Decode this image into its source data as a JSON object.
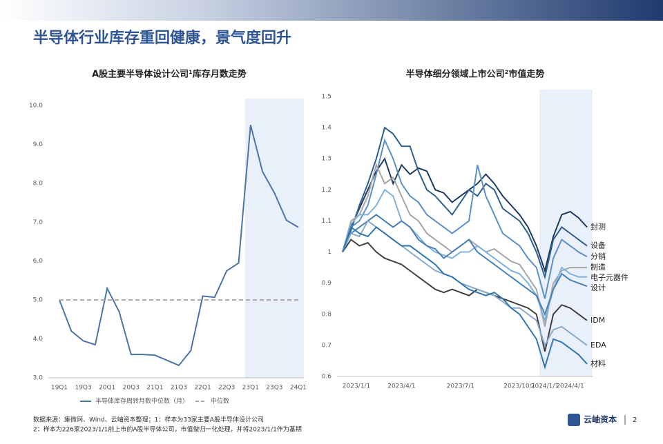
{
  "header": {
    "title": "半导体行业库存重回健康，景气度回升"
  },
  "chart_data": [
    {
      "type": "line",
      "title": "A股主要半导体设计公司¹库存月数走势",
      "categories": [
        "19Q1",
        null,
        "19Q3",
        null,
        "20Q1",
        null,
        "20Q3",
        null,
        "21Q1",
        null,
        "21Q3",
        null,
        "22Q1",
        null,
        "22Q3",
        null,
        "23Q1",
        null,
        "23Q3",
        null,
        "24Q1"
      ],
      "series": [
        {
          "name": "半导体库存周转月数中位数（月）",
          "color": "#4a74a8",
          "dash": false,
          "values": [
            5.0,
            4.2,
            3.95,
            3.85,
            5.3,
            4.7,
            3.6,
            3.6,
            3.58,
            3.45,
            3.32,
            3.7,
            5.1,
            5.07,
            5.75,
            5.95,
            9.5,
            8.3,
            7.75,
            7.05,
            6.87
          ]
        },
        {
          "name": "中位数",
          "color": "#a6a6a6",
          "dash": true,
          "values": [
            5,
            5,
            5,
            5,
            5,
            5,
            5,
            5,
            5,
            5,
            5,
            5,
            5,
            5,
            5,
            5,
            5,
            5,
            5,
            5,
            5
          ]
        }
      ],
      "ylim": [
        3,
        10
      ],
      "yticks": [
        {
          "value": 3,
          "label": "3.0"
        },
        {
          "value": 4,
          "label": "4.0"
        },
        {
          "value": 5,
          "label": "5.0"
        },
        {
          "value": 6,
          "label": "6.0"
        },
        {
          "value": 7,
          "label": "7.0"
        },
        {
          "value": 8,
          "label": "8.0"
        },
        {
          "value": 9,
          "label": "9.0"
        },
        {
          "value": 10,
          "label": "10.0"
        }
      ],
      "highlight": "23Q1",
      "legend": "bottom"
    },
    {
      "type": "line",
      "title": "半导体细分领域上市公司²市值走势",
      "categories": [
        "2023/1/1",
        null,
        null,
        null,
        null,
        null,
        null,
        "2023/4/1",
        null,
        null,
        null,
        null,
        null,
        null,
        "2023/7/1",
        null,
        null,
        null,
        null,
        null,
        null,
        "2023/10/1",
        null,
        null,
        "2024/1/1",
        null,
        null,
        "2024/4/1",
        null,
        null
      ],
      "series": [
        {
          "name": "封测",
          "color": "#1f3a5f",
          "values": [
            1.0,
            1.08,
            1.14,
            1.2,
            1.26,
            1.3,
            1.22,
            1.28,
            1.25,
            1.27,
            1.26,
            1.2,
            1.19,
            1.16,
            1.18,
            1.2,
            1.22,
            1.25,
            1.22,
            1.18,
            1.15,
            1.12,
            1.08,
            1.02,
            0.94,
            1.05,
            1.12,
            1.13,
            1.11,
            1.08
          ]
        },
        {
          "name": "设备",
          "color": "#2e5e8e",
          "values": [
            1.0,
            1.07,
            1.15,
            1.22,
            1.3,
            1.4,
            1.38,
            1.34,
            1.34,
            1.26,
            1.2,
            1.18,
            1.15,
            1.12,
            1.16,
            1.2,
            1.18,
            1.22,
            1.2,
            1.14,
            1.12,
            1.1,
            1.06,
            1.0,
            0.92,
            1.04,
            1.08,
            1.06,
            1.04,
            1.02
          ]
        },
        {
          "name": "分销",
          "color": "#5b8fc7",
          "values": [
            1.0,
            1.08,
            1.1,
            1.15,
            1.25,
            1.36,
            1.3,
            1.22,
            1.18,
            1.16,
            1.12,
            1.1,
            1.08,
            1.06,
            1.08,
            1.1,
            1.28,
            1.18,
            1.12,
            1.06,
            1.04,
            1.02,
            0.98,
            0.95,
            0.85,
            0.98,
            1.04,
            1.02,
            1.0,
            0.985
          ]
        },
        {
          "name": "制造",
          "color": "#a6a6a6",
          "values": [
            1.0,
            1.1,
            1.12,
            1.18,
            1.28,
            1.22,
            1.24,
            1.18,
            1.12,
            1.1,
            1.06,
            1.04,
            1.02,
            1.0,
            1.02,
            1.04,
            1.02,
            1.0,
            1.01,
            0.99,
            0.97,
            0.96,
            0.92,
            0.88,
            0.76,
            0.9,
            0.94,
            0.95,
            0.95,
            0.95
          ]
        },
        {
          "name": "电子元器件",
          "color": "#7fb0dc",
          "values": [
            1.0,
            1.09,
            1.12,
            1.12,
            1.15,
            1.2,
            1.18,
            1.1,
            1.08,
            1.05,
            1.02,
            1.0,
            0.99,
            0.98,
            1.0,
            1.0,
            1.02,
            1.0,
            0.98,
            0.96,
            0.94,
            0.93,
            0.9,
            0.86,
            0.78,
            0.88,
            0.95,
            0.93,
            0.92,
            0.92
          ]
        },
        {
          "name": "设计",
          "color": "#4a7fb5",
          "values": [
            1.0,
            1.06,
            1.08,
            1.1,
            1.12,
            1.1,
            1.08,
            1.1,
            1.08,
            1.04,
            1.02,
            1.01,
            0.98,
            1.0,
            1.02,
            1.04,
            1.0,
            0.98,
            0.96,
            0.94,
            0.92,
            0.9,
            0.88,
            0.86,
            0.8,
            0.88,
            0.93,
            0.91,
            0.9,
            0.89
          ]
        },
        {
          "name": "IDM",
          "color": "#404040",
          "values": [
            1.0,
            1.04,
            1.02,
            1.03,
            1.0,
            0.98,
            0.97,
            0.96,
            0.94,
            0.92,
            0.9,
            0.88,
            0.87,
            0.88,
            0.87,
            0.86,
            0.88,
            0.87,
            0.86,
            0.85,
            0.84,
            0.83,
            0.82,
            0.8,
            0.68,
            0.8,
            0.83,
            0.82,
            0.8,
            0.78
          ]
        },
        {
          "name": "EDA",
          "color": "#8aa9c9",
          "values": [
            1.0,
            1.06,
            1.05,
            1.1,
            1.08,
            1.06,
            1.04,
            1.02,
            1.0,
            0.98,
            0.96,
            0.94,
            0.93,
            0.92,
            0.9,
            0.89,
            0.88,
            0.87,
            0.86,
            0.84,
            0.82,
            0.82,
            0.8,
            0.78,
            0.7,
            0.75,
            0.76,
            0.74,
            0.72,
            0.7
          ]
        },
        {
          "name": "材料",
          "color": "#2f75b5",
          "values": [
            1.0,
            1.08,
            1.06,
            1.05,
            1.08,
            1.06,
            1.04,
            1.02,
            1.02,
            1.0,
            0.98,
            0.96,
            0.93,
            0.92,
            0.9,
            0.88,
            0.87,
            0.86,
            0.87,
            0.85,
            0.82,
            0.8,
            0.76,
            0.72,
            0.63,
            0.72,
            0.71,
            0.69,
            0.67,
            0.64
          ]
        }
      ],
      "ylim": [
        0.6,
        1.5
      ],
      "yticks": [
        0.6,
        0.7,
        0.8,
        0.9,
        1,
        1.1,
        1.2,
        1.3,
        1.4,
        1.5
      ],
      "highlight": "2024/1/1",
      "legend": "line-end"
    }
  ],
  "footer": {
    "notes": [
      "数据来源：集微网、Wind、云岫资本整理；1：样本为33家主要A股半导体设计公司",
      "2：样本为226家2023/1/1前上市的A股半导体公司，市值做归一化处理，并将2023/1/1作为基期"
    ],
    "logo": "云岫资本",
    "page": "2"
  }
}
